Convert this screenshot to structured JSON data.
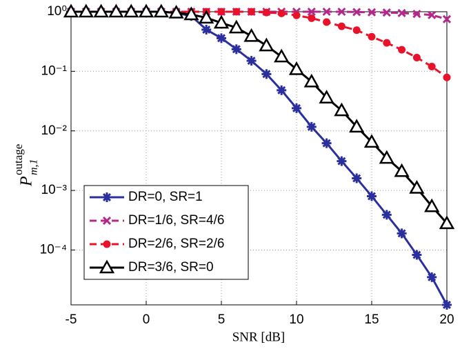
{
  "chart_data": {
    "type": "line",
    "x_label": "SNR [dB]",
    "y_label": {
      "symbol": "P",
      "subscript": "m,1",
      "superscript": "outage"
    },
    "x": [
      -5,
      -4,
      -3,
      -2,
      -1,
      0,
      1,
      2,
      3,
      4,
      5,
      6,
      7,
      8,
      9,
      10,
      11,
      12,
      13,
      14,
      15,
      16,
      17,
      18,
      19,
      20
    ],
    "series": [
      {
        "name": "DR=0, SR=1",
        "color": "#2b2f9e",
        "marker": "star",
        "dash": "solid",
        "values": [
          1,
          1,
          1,
          1,
          1,
          1,
          1,
          0.95,
          0.85,
          0.5,
          0.36,
          0.235,
          0.15,
          0.09,
          0.048,
          0.024,
          0.0117,
          0.0062,
          0.0031,
          0.0016,
          0.0008,
          0.00039,
          0.00019,
          8.3e-05,
          3.5e-05,
          1.2e-05
        ]
      },
      {
        "name": "DR=1/6, SR=4/6",
        "color": "#b4288c",
        "marker": "x",
        "dash": "dashed",
        "values": [
          1,
          1,
          1,
          1,
          1,
          1,
          1,
          1,
          1,
          1,
          1,
          1,
          1,
          1,
          1,
          1,
          1,
          1,
          1,
          0.99,
          0.98,
          0.97,
          0.95,
          0.92,
          0.88,
          0.75
        ]
      },
      {
        "name": "DR=2/6, SR=2/6",
        "color": "#e8132a",
        "marker": "circle",
        "dash": "dashed",
        "values": [
          1,
          1,
          1,
          1,
          1,
          1,
          1,
          1,
          1,
          1,
          1,
          1,
          1,
          0.97,
          0.94,
          0.87,
          0.78,
          0.67,
          0.57,
          0.49,
          0.38,
          0.3,
          0.23,
          0.17,
          0.12,
          0.079
        ]
      },
      {
        "name": "DR=3/6, SR=0",
        "color": "#000000",
        "marker": "triangle",
        "dash": "solid",
        "values": [
          1,
          1,
          1,
          1,
          1,
          1,
          1,
          0.96,
          0.9,
          0.79,
          0.65,
          0.54,
          0.39,
          0.27,
          0.176,
          0.108,
          0.067,
          0.036,
          0.022,
          0.0117,
          0.0065,
          0.0035,
          0.0021,
          0.0011,
          0.00054,
          0.00028
        ]
      }
    ],
    "xlim": [
      -5,
      20
    ],
    "xticks": [
      -5,
      0,
      5,
      10,
      15,
      20
    ],
    "ylim": [
      1.2e-05,
      1
    ],
    "log_y": true,
    "yticks": [
      {
        "value": 1,
        "label": "10⁰"
      },
      {
        "value": 0.1,
        "label": "10⁻¹"
      },
      {
        "value": 0.01,
        "label": "10⁻²"
      },
      {
        "value": 0.001,
        "label": "10⁻³"
      },
      {
        "value": 0.0001,
        "label": "10⁻⁴"
      }
    ],
    "grid": true,
    "legend": "lower left"
  }
}
